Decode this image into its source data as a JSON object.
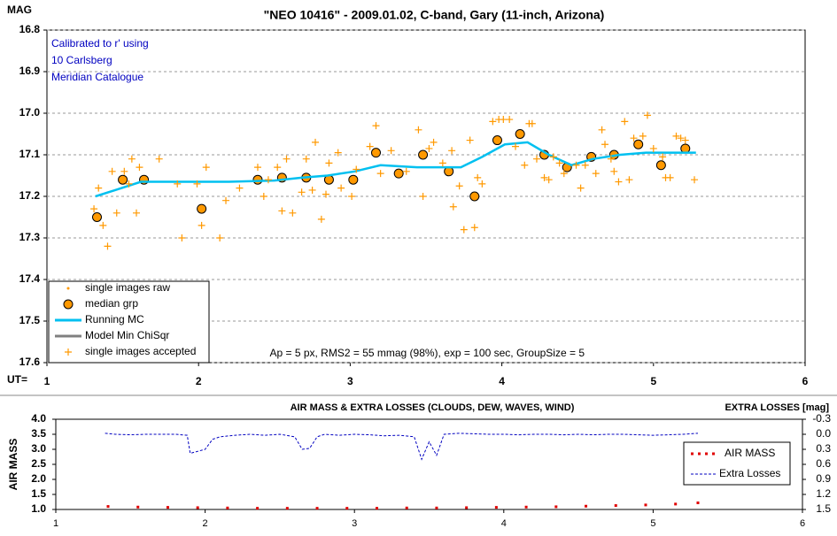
{
  "chart_data": [
    {
      "type": "scatter",
      "title": "\"NEO 10416\" - 2009.01.02, C-band, Gary (11-inch, Arizona)",
      "y_label": "MAG",
      "x_label": "UT=",
      "annotation_lines": [
        "Calibrated to r' using",
        "10 Carlsberg",
        "Meridian Catalogue"
      ],
      "footnote": "Ap = 5 px, RMS2 = 55 mmag (98%), exp = 100 sec, GroupSize = 5",
      "xlim": [
        1,
        6
      ],
      "xticks": [
        1,
        2,
        3,
        4,
        5,
        6
      ],
      "ylim": [
        17.6,
        16.8
      ],
      "yticks": [
        16.8,
        16.9,
        {
          "value": 17,
          "label": "17.0"
        },
        17.1,
        17.2,
        17.3,
        17.4,
        17.5,
        17.6
      ],
      "grid": true,
      "legend": "lower left",
      "series": [
        {
          "name": "single images raw",
          "color": "#ff9900",
          "marker": "dot",
          "x": [],
          "values": []
        },
        {
          "name": "median grp",
          "color": "#ff9900",
          "marker": "circle",
          "x": [
            1.33,
            1.5,
            1.64,
            2.02,
            2.39,
            2.55,
            2.71,
            2.86,
            3.02,
            3.17,
            3.32,
            3.48,
            3.65,
            3.82,
            3.97,
            4.12,
            4.28,
            4.43,
            4.59,
            4.74,
            4.9,
            5.05,
            5.21
          ],
          "values": [
            17.25,
            17.16,
            17.16,
            17.23,
            17.16,
            17.155,
            17.155,
            17.16,
            17.16,
            17.095,
            17.145,
            17.1,
            17.14,
            17.2,
            17.065,
            17.05,
            17.1,
            17.13,
            17.105,
            17.1,
            17.075,
            17.125,
            17.085
          ]
        },
        {
          "name": "Running MC",
          "color": "#00c0f0",
          "marker": "line",
          "x": [
            1.32,
            1.45,
            1.62,
            1.8,
            2.0,
            2.2,
            2.5,
            2.68,
            2.85,
            3.03,
            3.2,
            3.44,
            3.6,
            3.73,
            3.87,
            4.02,
            4.17,
            4.31,
            4.46,
            4.6,
            4.78,
            4.95,
            5.13,
            5.28
          ],
          "values": [
            17.2,
            17.185,
            17.165,
            17.165,
            17.165,
            17.165,
            17.162,
            17.155,
            17.15,
            17.14,
            17.125,
            17.13,
            17.13,
            17.13,
            17.105,
            17.075,
            17.07,
            17.1,
            17.125,
            17.11,
            17.1,
            17.095,
            17.095,
            17.095
          ]
        },
        {
          "name": "Model Min ChiSqr",
          "color": "#808080",
          "marker": "line",
          "x": [],
          "values": []
        },
        {
          "name": "single images accepted",
          "color": "#ff9900",
          "marker": "plus",
          "x": [
            1.31,
            1.34,
            1.37,
            1.4,
            1.43,
            1.46,
            1.51,
            1.54,
            1.56,
            1.59,
            1.61,
            1.74,
            1.86,
            1.89,
            1.99,
            2.02,
            2.05,
            2.14,
            2.18,
            2.27,
            2.39,
            2.43,
            2.46,
            2.52,
            2.55,
            2.58,
            2.62,
            2.68,
            2.71,
            2.75,
            2.77,
            2.81,
            2.84,
            2.86,
            2.92,
            2.94,
            3.01,
            3.04,
            3.13,
            3.17,
            3.2,
            3.27,
            3.37,
            3.45,
            3.48,
            3.52,
            3.55,
            3.61,
            3.67,
            3.68,
            3.72,
            3.75,
            3.79,
            3.82,
            3.84,
            3.87,
            3.94,
            3.98,
            4.01,
            4.05,
            4.09,
            4.15,
            4.18,
            4.2,
            4.23,
            4.28,
            4.31,
            4.34,
            4.38,
            4.41,
            4.49,
            4.52,
            4.55,
            4.62,
            4.66,
            4.68,
            4.72,
            4.74,
            4.77,
            4.81,
            4.84,
            4.87,
            4.93,
            4.96,
            5.0,
            5.06,
            5.08,
            5.11,
            5.15,
            5.18,
            5.21,
            5.27
          ],
          "values": [
            17.23,
            17.18,
            17.27,
            17.32,
            17.14,
            17.24,
            17.14,
            17.17,
            17.11,
            17.24,
            17.13,
            17.11,
            17.17,
            17.3,
            17.17,
            17.27,
            17.13,
            17.3,
            17.21,
            17.18,
            17.13,
            17.2,
            17.16,
            17.13,
            17.235,
            17.11,
            17.24,
            17.19,
            17.11,
            17.185,
            17.07,
            17.255,
            17.195,
            17.12,
            17.095,
            17.18,
            17.2,
            17.135,
            17.08,
            17.03,
            17.145,
            17.09,
            17.14,
            17.04,
            17.2,
            17.085,
            17.07,
            17.12,
            17.09,
            17.225,
            17.175,
            17.28,
            17.065,
            17.275,
            17.155,
            17.17,
            17.02,
            17.015,
            17.015,
            17.015,
            17.08,
            17.125,
            17.025,
            17.025,
            17.11,
            17.155,
            17.16,
            17.105,
            17.12,
            17.145,
            17.125,
            17.18,
            17.125,
            17.145,
            17.04,
            17.075,
            17.11,
            17.14,
            17.165,
            17.02,
            17.16,
            17.06,
            17.055,
            17.005,
            17.085,
            17.105,
            17.155,
            17.155,
            17.055,
            17.06,
            17.065,
            17.16
          ]
        }
      ]
    },
    {
      "type": "line",
      "title": "AIR MASS & EXTRA LOSSES (CLOUDS, DEW, WAVES, WIND)",
      "y_label": "AIR MASS",
      "y2_label": "EXTRA LOSSES [mag]",
      "xlim": [
        1,
        6
      ],
      "xticks": [
        1,
        2,
        3,
        4,
        5,
        6
      ],
      "ylim": [
        1,
        4
      ],
      "yticks": [
        {
          "value": 1,
          "label": "1.0"
        },
        1.5,
        {
          "value": 2,
          "label": "2.0"
        },
        2.5,
        {
          "value": 3,
          "label": "3.0"
        },
        3.5,
        {
          "value": 4,
          "label": "4.0"
        }
      ],
      "y2lim": [
        1.5,
        -0.3
      ],
      "y2ticks": [
        -0.3,
        {
          "value": 0,
          "label": "0.0"
        },
        0.3,
        0.6,
        0.9,
        1.2,
        1.5
      ],
      "legend": "right",
      "series": [
        {
          "name": "AIR MASS",
          "color": "#e00000",
          "style": "dots",
          "axis": "y",
          "x": [
            1.35,
            1.55,
            1.75,
            1.95,
            2.15,
            2.35,
            2.55,
            2.75,
            2.95,
            3.15,
            3.35,
            3.55,
            3.75,
            3.95,
            4.15,
            4.35,
            4.55,
            4.75,
            4.95,
            5.15,
            5.3
          ],
          "values": [
            1.1,
            1.08,
            1.07,
            1.06,
            1.05,
            1.04,
            1.04,
            1.04,
            1.04,
            1.04,
            1.05,
            1.05,
            1.06,
            1.07,
            1.08,
            1.09,
            1.11,
            1.13,
            1.15,
            1.18,
            1.22
          ]
        },
        {
          "name": "Extra Losses",
          "color": "#0000c0",
          "style": "dashed",
          "axis": "y2",
          "x": [
            1.33,
            1.4,
            1.5,
            1.6,
            1.7,
            1.8,
            1.88,
            1.9,
            2.0,
            2.05,
            2.1,
            2.2,
            2.3,
            2.4,
            2.5,
            2.6,
            2.65,
            2.7,
            2.75,
            2.8,
            2.9,
            3.0,
            3.1,
            3.2,
            3.3,
            3.4,
            3.45,
            3.5,
            3.55,
            3.6,
            3.7,
            3.8,
            3.9,
            4.0,
            4.1,
            4.2,
            4.3,
            4.4,
            4.5,
            4.6,
            4.7,
            4.8,
            4.9,
            5.0,
            5.1,
            5.2,
            5.3
          ],
          "values": [
            -0.02,
            0,
            0.01,
            0,
            0,
            0,
            0.02,
            0.38,
            0.3,
            0.1,
            0.05,
            0.02,
            0,
            0.02,
            0,
            0.05,
            0.3,
            0.28,
            0.05,
            0,
            0.02,
            0,
            0.01,
            0.03,
            0.02,
            0.05,
            0.5,
            0.15,
            0.42,
            0,
            -0.02,
            -0.01,
            0,
            0,
            0.01,
            0,
            0,
            0.01,
            0,
            0.01,
            0,
            0,
            0.01,
            0.02,
            0.01,
            0,
            -0.02
          ]
        }
      ]
    }
  ]
}
